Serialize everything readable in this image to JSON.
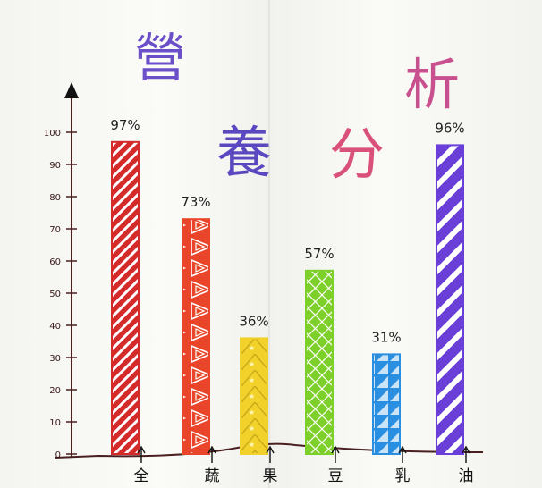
{
  "title": {
    "chars": [
      {
        "text": "營",
        "color": "#6b4fc9"
      },
      {
        "text": "養",
        "color": "#5a48c0"
      },
      {
        "text": "分",
        "color": "#d9507a"
      },
      {
        "text": "析",
        "color": "#c9508e"
      }
    ]
  },
  "chart_data": {
    "type": "bar",
    "categories": [
      "全",
      "蔬",
      "果",
      "豆",
      "乳",
      "油"
    ],
    "values": [
      97,
      73,
      36,
      57,
      31,
      96
    ],
    "data_labels": [
      "97%",
      "73%",
      "36%",
      "57%",
      "31%",
      "96%"
    ],
    "ylim": [
      0,
      100
    ],
    "yticks": [
      "0",
      "10",
      "20",
      "30",
      "40",
      "50",
      "60",
      "70",
      "80",
      "90",
      "100"
    ],
    "xlabel": "",
    "ylabel": "",
    "grid": false,
    "bar_colors": [
      "#d42a2a",
      "#e8452a",
      "#f2d22a",
      "#7dcf2a",
      "#2a8fe0",
      "#6a3fd8"
    ],
    "axis_color": "#4a1f1f"
  }
}
